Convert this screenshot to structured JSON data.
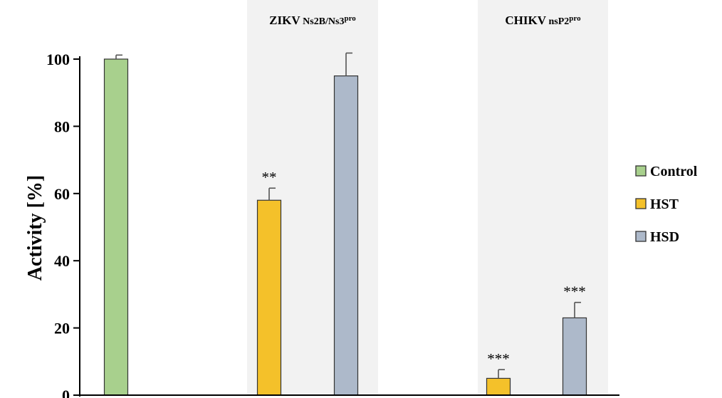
{
  "chart_data": {
    "type": "bar",
    "ylabel": "Activity [%]",
    "ylim": [
      0,
      100
    ],
    "yticks": [
      0,
      20,
      40,
      60,
      80,
      100
    ],
    "grid": false,
    "legend_position": "right",
    "colors": {
      "Control": "#a8d08d",
      "HST": "#f4c12a",
      "HSD": "#adb9ca"
    },
    "legend": [
      "Control",
      "HST",
      "HSD"
    ],
    "groups": [
      {
        "title": "",
        "title_main": "",
        "title_sub": "",
        "title_sup": "",
        "shaded": false,
        "bars": [
          {
            "series": "Control",
            "value": 100,
            "error": 1.2,
            "sig": ""
          }
        ]
      },
      {
        "title": "ZIKV Ns2B/Ns3pro",
        "title_main": "ZIKV",
        "title_sub": " Ns2B/Ns3",
        "title_sup": "pro",
        "shaded": true,
        "bars": [
          {
            "series": "HST",
            "value": 58,
            "error": 3.6,
            "sig": "**"
          },
          {
            "series": "HSD",
            "value": 95,
            "error": 6.8,
            "sig": ""
          }
        ]
      },
      {
        "title": "CHIKV nsP2pro",
        "title_main": "CHIKV",
        "title_sub": " nsP2",
        "title_sup": "pro",
        "shaded": true,
        "bars": [
          {
            "series": "HST",
            "value": 5,
            "error": 2.6,
            "sig": "***"
          },
          {
            "series": "HSD",
            "value": 23,
            "error": 4.6,
            "sig": "***"
          }
        ]
      }
    ]
  }
}
